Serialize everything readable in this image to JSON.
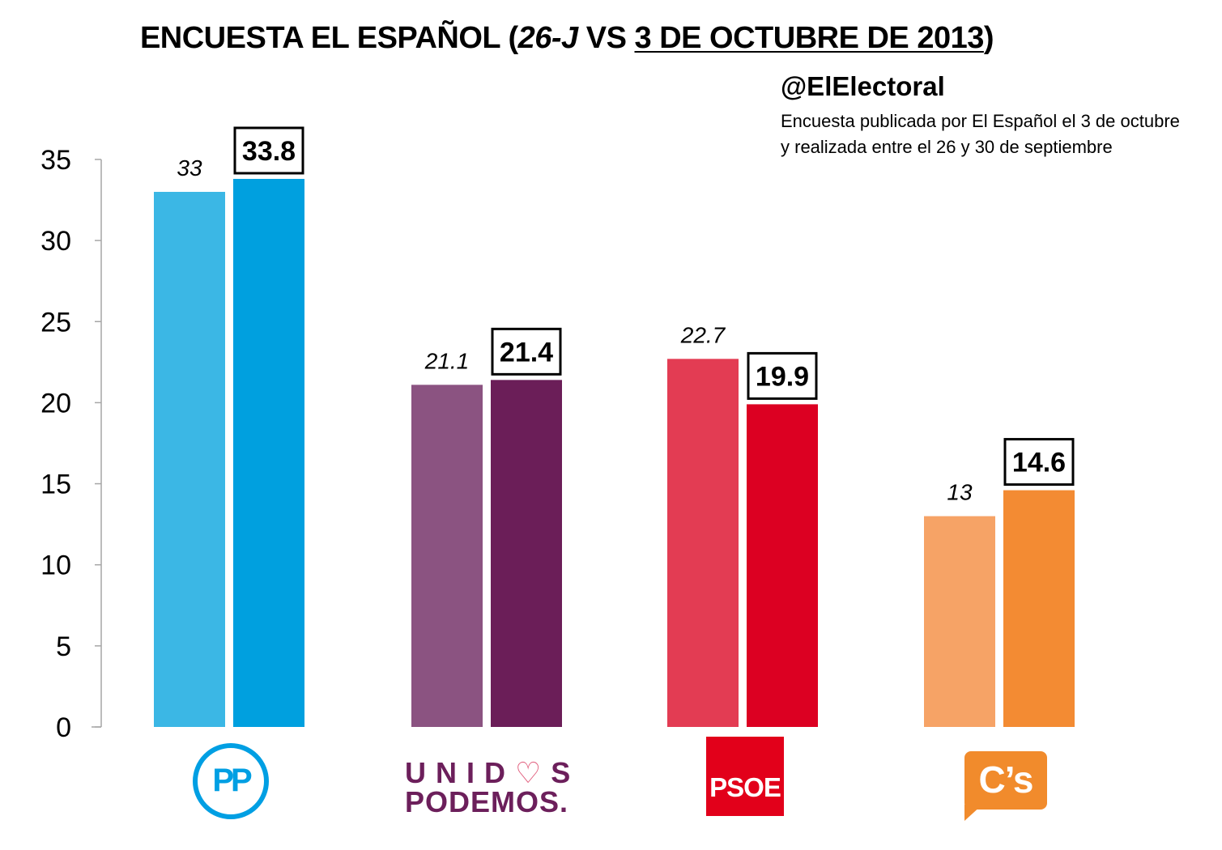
{
  "header": {
    "title_part1": "ENCUESTA EL ESPAÑOL (",
    "title_part2": "26-J",
    "title_part3": " VS ",
    "title_part4": "3 DE OCTUBRE DE 2013",
    "title_part5": ")",
    "handle": "@ElElectoral",
    "note_line1": "Encuesta publicada por El Español el 3 de octubre",
    "note_line2": "y realizada entre el 26 y 30 de septiembre"
  },
  "logos": {
    "pp": "PP",
    "up_line1_a": "UNID",
    "up_heart": "♡",
    "up_line1_b": "S",
    "up_line2": "PODEMOS.",
    "psoe": "PSOE",
    "cs": "C’s"
  },
  "colors": {
    "axis": "#a6a6a6",
    "label_box_border": "#000000"
  },
  "chart_data": {
    "type": "bar",
    "categories": [
      "PP",
      "Unidos Podemos",
      "PSOE",
      "C's"
    ],
    "series": [
      {
        "values": [
          33,
          21.1,
          22.7,
          13
        ],
        "labels": [
          "33",
          "21.1",
          "22.7",
          "13"
        ],
        "colors": [
          "#3bb7e5",
          "#8b5381",
          "#e33c53",
          "#f6a366"
        ]
      },
      {
        "values": [
          33.8,
          21.4,
          19.9,
          14.6
        ],
        "labels": [
          "33.8",
          "21.4",
          "19.9",
          "14.6"
        ],
        "colors": [
          "#00a0df",
          "#6b1e58",
          "#dc0022",
          "#f38b33"
        ]
      }
    ],
    "ylim": [
      0,
      35
    ],
    "yticks": [
      "0",
      "5",
      "10",
      "15",
      "20",
      "25",
      "30",
      "35"
    ],
    "xlabel": "",
    "ylabel": "",
    "grid": false,
    "legend": "none"
  }
}
